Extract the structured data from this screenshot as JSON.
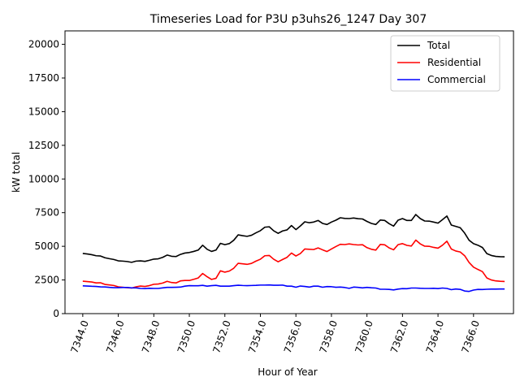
{
  "chart_data": {
    "type": "line",
    "title": "Timeseries Load for P3U p3uhs26_1247  Day 307",
    "xlabel": "Hour of Year",
    "ylabel": "kW total",
    "xlim": [
      7343.0,
      7368.25
    ],
    "ylim": [
      0,
      21000
    ],
    "xticks": [
      7344.0,
      7346.0,
      7348.0,
      7350.0,
      7352.0,
      7354.0,
      7356.0,
      7358.0,
      7360.0,
      7362.0,
      7364.0,
      7366.0
    ],
    "xtick_labels": [
      "7344.0",
      "7346.0",
      "7348.0",
      "7350.0",
      "7352.0",
      "7354.0",
      "7356.0",
      "7358.0",
      "7360.0",
      "7362.0",
      "7364.0",
      "7366.0"
    ],
    "yticks": [
      0,
      2500,
      5000,
      7500,
      10000,
      12500,
      15000,
      17500,
      20000
    ],
    "ytick_labels": [
      "0",
      "2500",
      "5000",
      "7500",
      "10000",
      "12500",
      "15000",
      "17500",
      "20000"
    ],
    "legend_position": "top-right",
    "x": [
      7344.0,
      7344.25,
      7344.5,
      7344.75,
      7345.0,
      7345.25,
      7345.5,
      7345.75,
      7346.0,
      7346.25,
      7346.5,
      7346.75,
      7347.0,
      7347.25,
      7347.5,
      7347.75,
      7348.0,
      7348.25,
      7348.5,
      7348.75,
      7349.0,
      7349.25,
      7349.5,
      7349.75,
      7350.0,
      7350.25,
      7350.5,
      7350.75,
      7351.0,
      7351.25,
      7351.5,
      7351.75,
      7352.0,
      7352.25,
      7352.5,
      7352.75,
      7353.0,
      7353.25,
      7353.5,
      7353.75,
      7354.0,
      7354.25,
      7354.5,
      7354.75,
      7355.0,
      7355.25,
      7355.5,
      7355.75,
      7356.0,
      7356.25,
      7356.5,
      7356.75,
      7357.0,
      7357.25,
      7357.5,
      7357.75,
      7358.0,
      7358.25,
      7358.5,
      7358.75,
      7359.0,
      7359.25,
      7359.5,
      7359.75,
      7360.0,
      7360.25,
      7360.5,
      7360.75,
      7361.0,
      7361.25,
      7361.5,
      7361.75,
      7362.0,
      7362.25,
      7362.5,
      7362.75,
      7363.0,
      7363.25,
      7363.5,
      7363.75,
      7364.0,
      7364.25,
      7364.5,
      7364.75,
      7365.0,
      7365.25,
      7365.5,
      7365.75,
      7366.0,
      7366.25,
      7366.5,
      7366.75,
      7367.0,
      7367.25,
      7367.5,
      7367.75
    ],
    "series": [
      {
        "name": "Total",
        "color": "#000000",
        "values": [
          4470,
          4430,
          4380,
          4300,
          4280,
          4150,
          4080,
          4020,
          3920,
          3900,
          3870,
          3810,
          3900,
          3920,
          3880,
          3960,
          4050,
          4070,
          4180,
          4350,
          4260,
          4240,
          4400,
          4500,
          4540,
          4620,
          4720,
          5080,
          4780,
          4620,
          4720,
          5220,
          5120,
          5200,
          5450,
          5850,
          5790,
          5740,
          5820,
          6000,
          6160,
          6420,
          6450,
          6150,
          5960,
          6140,
          6220,
          6540,
          6240,
          6510,
          6820,
          6750,
          6800,
          6920,
          6700,
          6620,
          6800,
          6940,
          7120,
          7070,
          7060,
          7100,
          7050,
          7030,
          6850,
          6700,
          6620,
          6950,
          6920,
          6680,
          6500,
          6940,
          7060,
          6920,
          6920,
          7360,
          7060,
          6880,
          6870,
          6800,
          6720,
          6980,
          7250,
          6580,
          6480,
          6380,
          5980,
          5450,
          5200,
          5080,
          4910,
          4460,
          4320,
          4250,
          4230,
          4220
        ]
      },
      {
        "name": "Residential",
        "color": "#ff0000",
        "values": [
          2410,
          2380,
          2350,
          2280,
          2290,
          2170,
          2130,
          2090,
          1990,
          1960,
          1930,
          1900,
          1990,
          2050,
          2020,
          2080,
          2180,
          2200,
          2270,
          2400,
          2310,
          2280,
          2430,
          2460,
          2460,
          2550,
          2650,
          2980,
          2740,
          2540,
          2620,
          3180,
          3080,
          3160,
          3370,
          3740,
          3700,
          3660,
          3730,
          3900,
          4040,
          4300,
          4320,
          4040,
          3850,
          4020,
          4180,
          4500,
          4280,
          4460,
          4800,
          4780,
          4760,
          4880,
          4740,
          4610,
          4800,
          4980,
          5150,
          5130,
          5180,
          5130,
          5100,
          5120,
          4900,
          4780,
          4720,
          5140,
          5110,
          4880,
          4740,
          5120,
          5200,
          5070,
          5020,
          5460,
          5180,
          5010,
          5000,
          4920,
          4860,
          5080,
          5380,
          4800,
          4650,
          4580,
          4300,
          3800,
          3450,
          3280,
          3120,
          2650,
          2500,
          2430,
          2400,
          2390
        ]
      },
      {
        "name": "Commercial",
        "color": "#0000ff",
        "values": [
          2060,
          2050,
          2030,
          2020,
          1990,
          1980,
          1950,
          1930,
          1930,
          1940,
          1940,
          1910,
          1910,
          1870,
          1860,
          1880,
          1870,
          1870,
          1910,
          1950,
          1950,
          1960,
          1970,
          2040,
          2080,
          2070,
          2070,
          2100,
          2040,
          2080,
          2100,
          2040,
          2040,
          2040,
          2080,
          2110,
          2090,
          2080,
          2090,
          2100,
          2120,
          2120,
          2130,
          2110,
          2110,
          2120,
          2040,
          2040,
          1960,
          2050,
          2020,
          1970,
          2040,
          2040,
          1960,
          2010,
          2000,
          1960,
          1970,
          1940,
          1880,
          1970,
          1950,
          1910,
          1950,
          1920,
          1900,
          1810,
          1810,
          1800,
          1760,
          1820,
          1860,
          1850,
          1900,
          1900,
          1880,
          1870,
          1870,
          1880,
          1860,
          1900,
          1870,
          1780,
          1830,
          1800,
          1680,
          1650,
          1750,
          1800,
          1790,
          1810,
          1820,
          1820,
          1830,
          1830
        ]
      }
    ]
  }
}
